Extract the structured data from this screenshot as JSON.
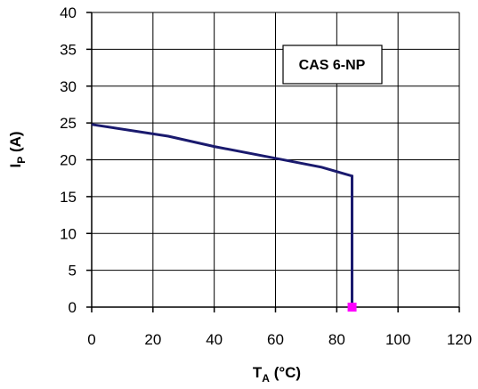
{
  "chart_data": {
    "type": "line",
    "annotation": "CAS 6-NP",
    "xlabel": {
      "main": "T",
      "sub": "A",
      "unit": " (°C)"
    },
    "ylabel": {
      "main": "I",
      "sub": "P",
      "unit": " (A)"
    },
    "xlim": [
      0,
      120
    ],
    "ylim": [
      0,
      40
    ],
    "x_ticks": [
      0,
      20,
      40,
      60,
      80,
      100,
      120
    ],
    "y_ticks": [
      0,
      5,
      10,
      15,
      20,
      25,
      30,
      35,
      40
    ],
    "x_tick_labels": [
      "0",
      "20",
      "40",
      "60",
      "80",
      "100",
      "120"
    ],
    "y_tick_labels": [
      "0",
      "5",
      "10",
      "15",
      "20",
      "25",
      "30",
      "35",
      "40"
    ],
    "grid": true,
    "series": [
      {
        "color": "#1a1a6e",
        "x": [
          0,
          25,
          40,
          60,
          75,
          85,
          85
        ],
        "y": [
          24.8,
          23.2,
          21.8,
          20.2,
          19,
          17.8,
          0
        ]
      }
    ],
    "marker": {
      "x": 85,
      "y": 0,
      "color": "#ff00ff"
    }
  }
}
